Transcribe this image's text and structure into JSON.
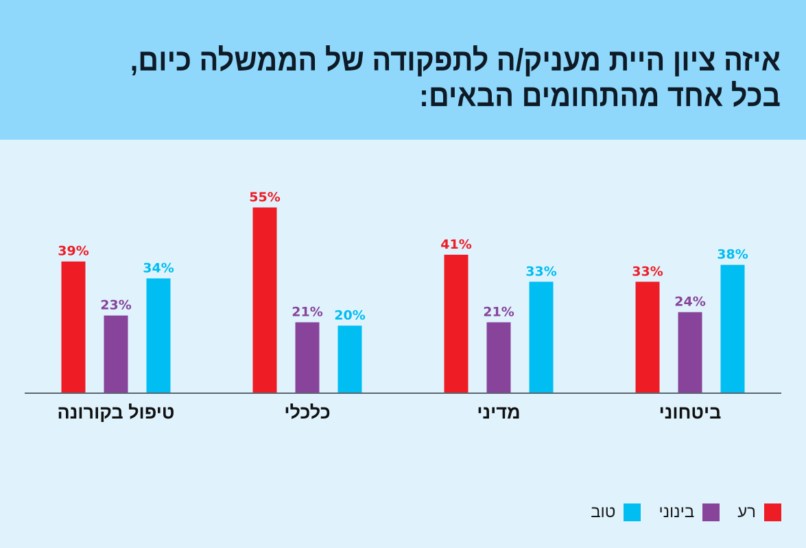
{
  "header": {
    "title_line1": "איזה ציון היית מעניק/ה לתפקודה של הממשלה כיום,",
    "title_line2": "בכל אחד מהתחומים הבאים:"
  },
  "colors": {
    "bad": "#ee1c25",
    "medium": "#87449a",
    "good": "#00bdf2",
    "axis": "#5a6670",
    "category_text": "#111111"
  },
  "legend": [
    {
      "key": "good",
      "label": "טוב"
    },
    {
      "key": "medium",
      "label": "בינוני"
    },
    {
      "key": "bad",
      "label": "רע"
    }
  ],
  "chart_data": {
    "type": "bar",
    "title": "איזה ציון היית מעניק/ה לתפקודה של הממשלה כיום, בכל אחד מהתחומים הבאים:",
    "categories": [
      "טיפול בקורונה",
      "כלכלי",
      "מדיני",
      "ביטחוני"
    ],
    "series": [
      {
        "name": "רע",
        "key": "bad",
        "values": [
          39,
          55,
          41,
          33
        ]
      },
      {
        "name": "בינוני",
        "key": "medium",
        "values": [
          23,
          21,
          21,
          24
        ]
      },
      {
        "name": "טוב",
        "key": "good",
        "values": [
          34,
          20,
          33,
          38
        ]
      }
    ],
    "value_suffix": "%",
    "xlabel": "",
    "ylabel": "",
    "ylim": [
      0,
      60
    ],
    "grid": false,
    "legend_position": "bottom-right"
  }
}
